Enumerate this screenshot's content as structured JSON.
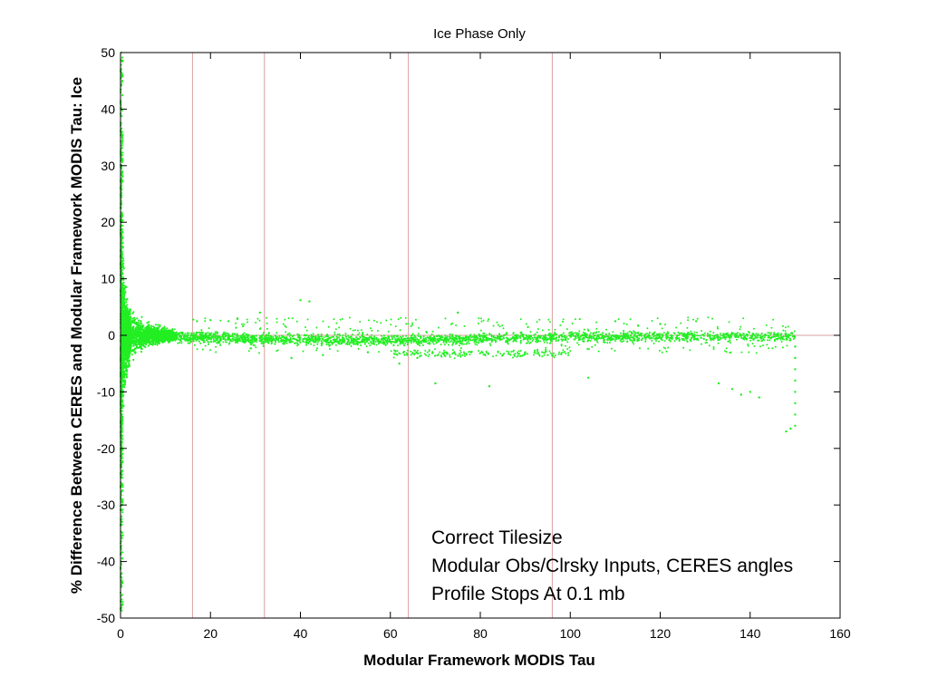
{
  "chart_data": {
    "type": "scatter",
    "title": "Ice Phase Only",
    "xlabel": "Modular Framework MODIS Tau",
    "ylabel": "% Difference Between CERES and Modular Framework MODIS Tau: Ice",
    "xlim": [
      0,
      160
    ],
    "ylim": [
      -50,
      50
    ],
    "xticks": [
      "0",
      "20",
      "40",
      "60",
      "80",
      "100",
      "120",
      "140",
      "160"
    ],
    "yticks": [
      "50",
      "40",
      "30",
      "20",
      "10",
      "0",
      "-10",
      "-20",
      "-30",
      "-40",
      "-50"
    ],
    "grid": false,
    "series_color": "#22ee22",
    "reference_color": "#d9a0a0",
    "vertical_lines_x": [
      16,
      32,
      64,
      96
    ],
    "horizontal_line_y": 0,
    "outlier_points": [
      [
        17,
        2.5
      ],
      [
        20,
        2.7
      ],
      [
        24,
        2.5
      ],
      [
        26,
        3.0
      ],
      [
        31,
        4.0
      ],
      [
        40,
        6.2
      ],
      [
        42,
        6.0
      ],
      [
        38,
        -4.0
      ],
      [
        45,
        -3.5
      ],
      [
        55,
        -3.0
      ],
      [
        62,
        -5.0
      ],
      [
        66,
        -4.0
      ],
      [
        70,
        -8.5
      ],
      [
        75,
        4.0
      ],
      [
        78,
        -3.0
      ],
      [
        82,
        -9.0
      ],
      [
        85,
        -3.5
      ],
      [
        90,
        -3.0
      ],
      [
        95,
        -3.5
      ],
      [
        104,
        -7.5
      ],
      [
        110,
        2.5
      ],
      [
        120,
        2.0
      ],
      [
        128,
        2.5
      ],
      [
        133,
        -8.5
      ],
      [
        136,
        -9.5
      ],
      [
        138,
        -10.5
      ],
      [
        140,
        -10.0
      ],
      [
        142,
        -11.0
      ],
      [
        148,
        -17.0
      ],
      [
        149,
        -16.5
      ],
      [
        150,
        -16.0
      ],
      [
        150,
        -14.0
      ],
      [
        150,
        -12.0
      ],
      [
        150,
        -10.0
      ],
      [
        150,
        -8.0
      ],
      [
        150,
        -6.0
      ],
      [
        150,
        -4.0
      ],
      [
        150,
        -2.0
      ]
    ],
    "annotations": [
      "Correct Tilesize",
      "Modular Obs/Clrsky Inputs, CERES angles",
      "Profile Stops At 0.1 mb"
    ]
  }
}
